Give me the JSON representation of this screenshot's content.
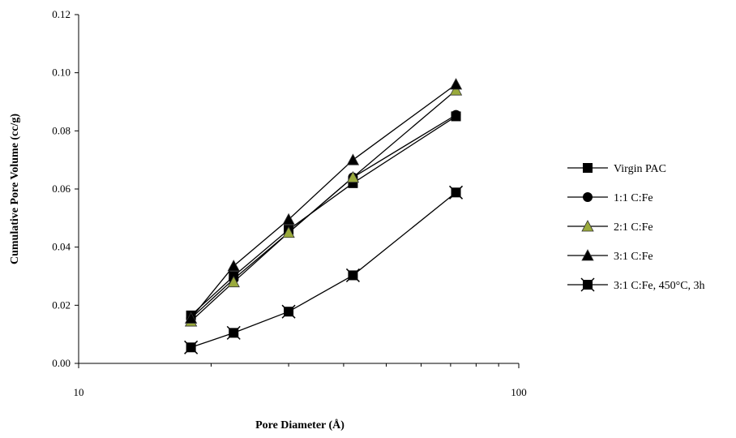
{
  "chart_data": {
    "type": "line",
    "xlabel": "Pore Diameter (Å)",
    "ylabel": "Cumulative Pore Volume (cc/g)",
    "x_scale": "log",
    "xlim": [
      10,
      100
    ],
    "ylim": [
      0,
      0.12
    ],
    "x_tick_labels": [
      "10",
      "100"
    ],
    "y_tick_labels": [
      "0.00",
      "0.02",
      "0.04",
      "0.06",
      "0.08",
      "0.10",
      "0.12"
    ],
    "grid": false,
    "legend_position": "right",
    "series": [
      {
        "name": "Virgin PAC",
        "marker": "square",
        "marker_color": "#000000",
        "line_color": "#000000",
        "x": [
          18,
          22.5,
          30,
          42,
          72
        ],
        "y": [
          0.0165,
          0.03,
          0.046,
          0.062,
          0.085
        ]
      },
      {
        "name": "1:1 C:Fe",
        "marker": "circle",
        "marker_color": "#000000",
        "line_color": "#000000",
        "x": [
          18,
          22.5,
          30,
          42,
          72
        ],
        "y": [
          0.0155,
          0.029,
          0.045,
          0.064,
          0.0855
        ]
      },
      {
        "name": "2:1 C:Fe",
        "marker": "triangle",
        "marker_color": "#9aaa3c",
        "line_color": "#000000",
        "x": [
          18,
          22.5,
          30,
          42,
          72
        ],
        "y": [
          0.0145,
          0.028,
          0.045,
          0.064,
          0.094
        ]
      },
      {
        "name": "3:1 C:Fe",
        "marker": "triangle",
        "marker_color": "#000000",
        "line_color": "#000000",
        "x": [
          18,
          22.5,
          30,
          42,
          72
        ],
        "y": [
          0.0155,
          0.0335,
          0.0495,
          0.07,
          0.096
        ]
      },
      {
        "name": "3:1 C:Fe, 450°C, 3h",
        "marker": "asterisk-square",
        "marker_color": "#000000",
        "line_color": "#000000",
        "x": [
          18,
          22.5,
          30,
          42,
          72
        ],
        "y": [
          0.0055,
          0.0105,
          0.0178,
          0.0303,
          0.0588
        ]
      }
    ]
  }
}
